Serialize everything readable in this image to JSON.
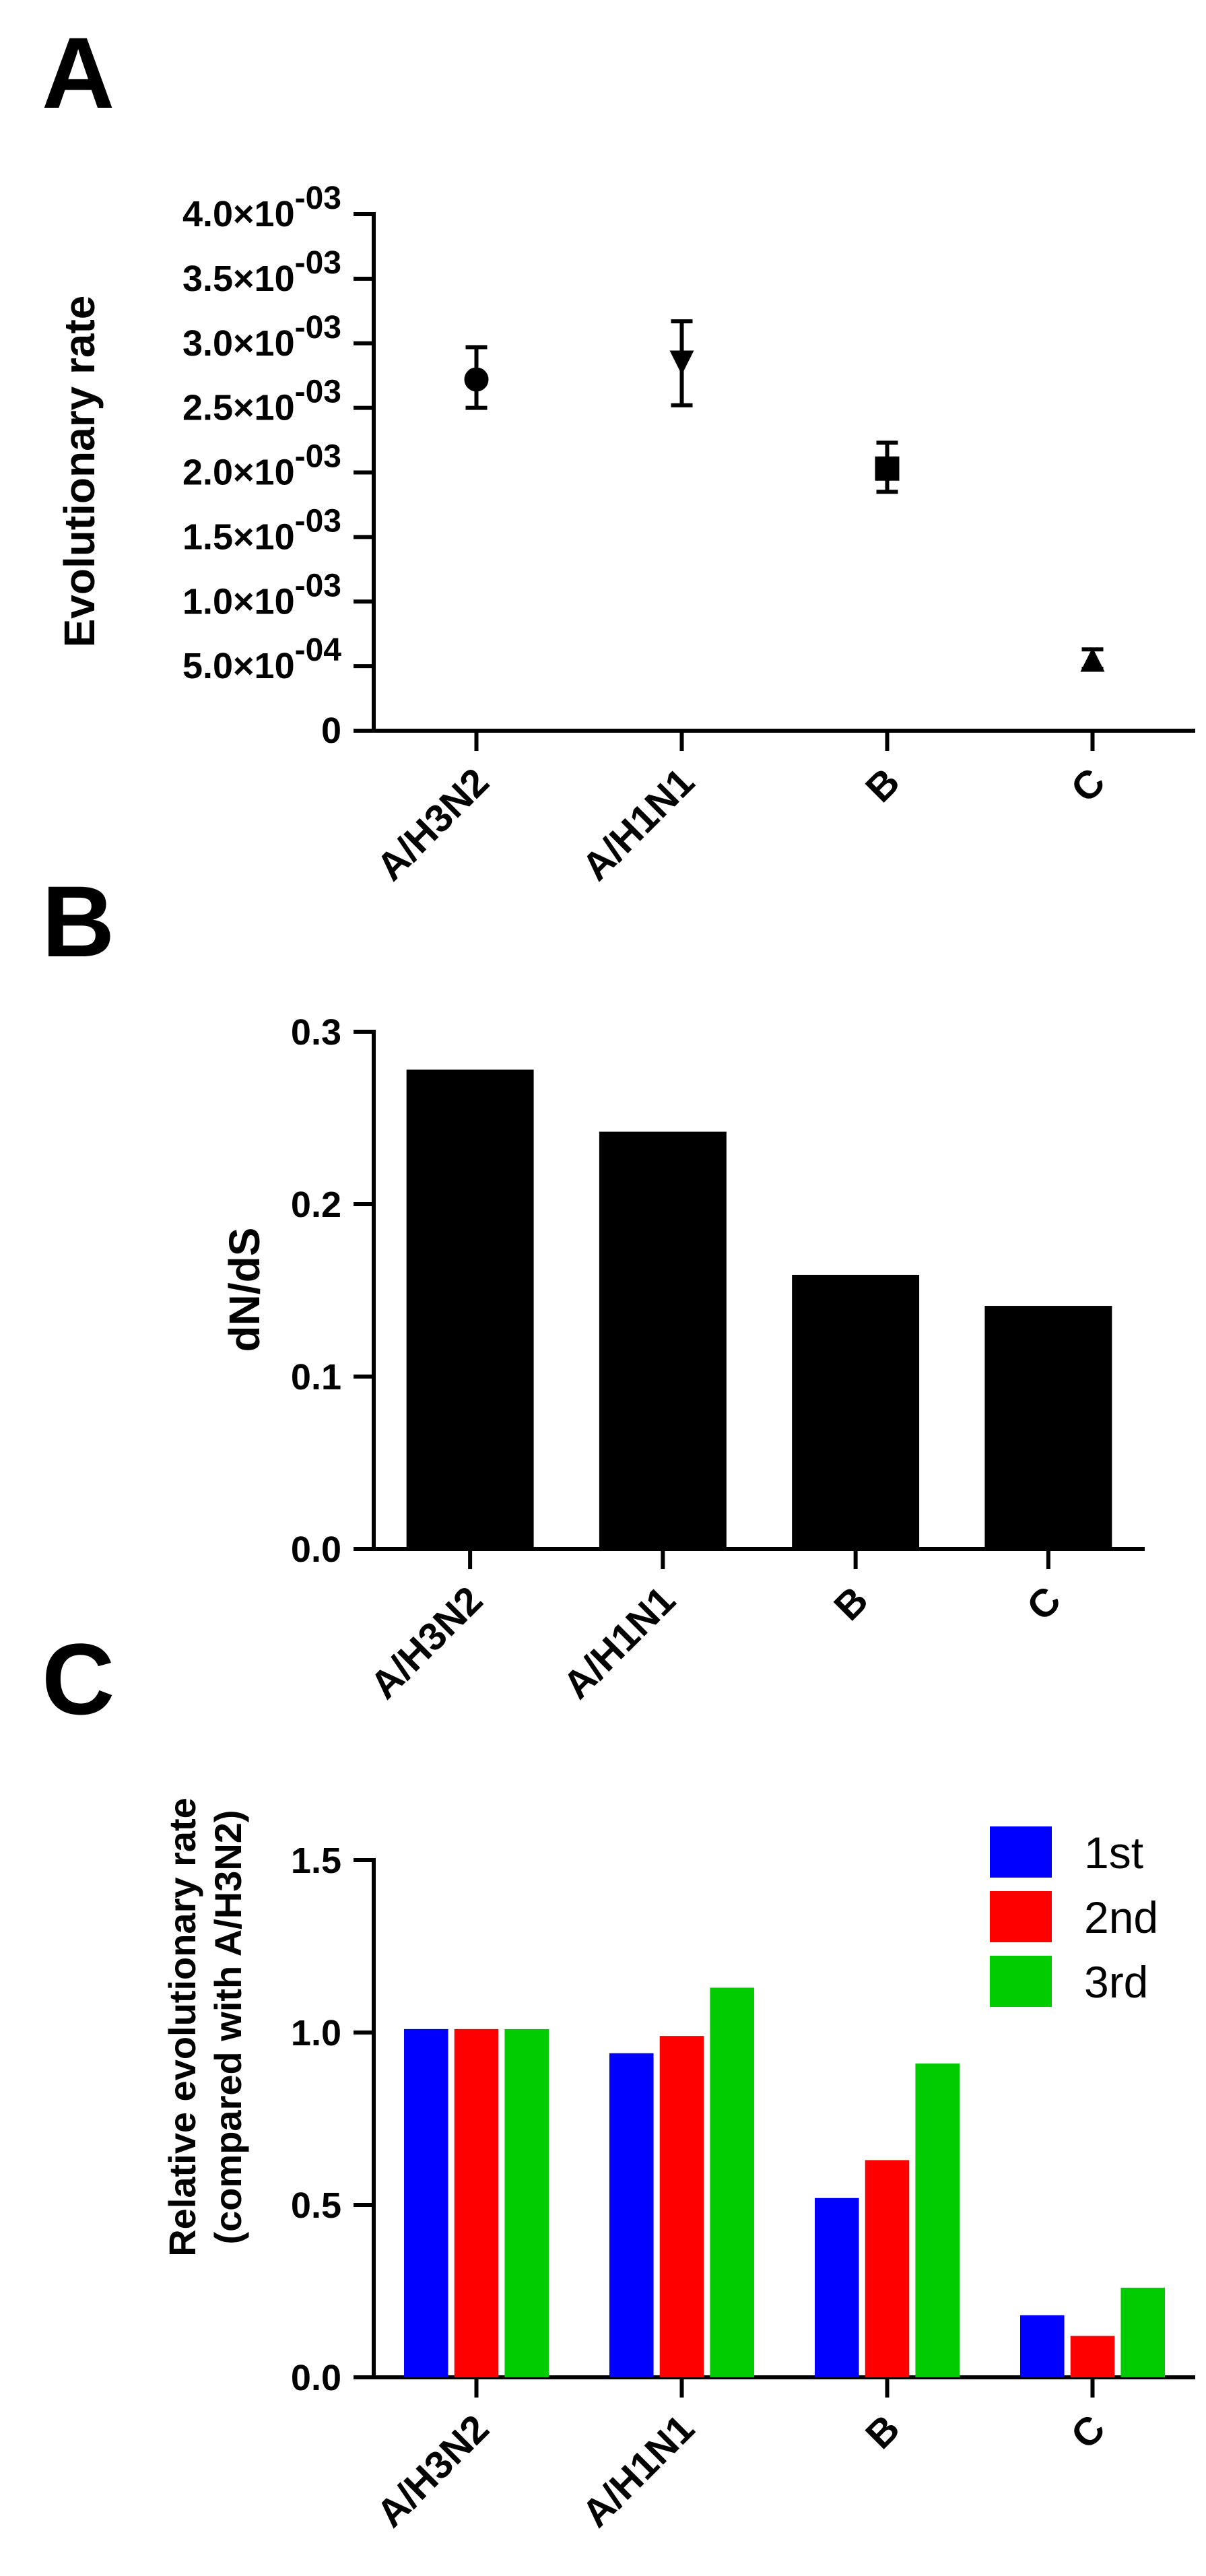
{
  "panels": [
    "A",
    "B",
    "C"
  ],
  "chart_data": [
    {
      "type": "scatter",
      "panel": "A",
      "ylabel": "Evolutionary rate",
      "xlabel": "",
      "categories": [
        "A/H3N2",
        "A/H1N1",
        "B",
        "C"
      ],
      "markers": [
        "circle",
        "triangle-down",
        "square",
        "triangle-up"
      ],
      "values": [
        0.00272,
        0.00285,
        0.00203,
        0.00055
      ],
      "err_low": [
        0.0025,
        0.00252,
        0.00185,
        0.00048
      ],
      "err_high": [
        0.00297,
        0.00317,
        0.00223,
        0.00063
      ],
      "ylim": [
        0,
        0.004
      ],
      "yticks": [
        {
          "value": 0,
          "mant": "0",
          "exp": ""
        },
        {
          "value": 0.0005,
          "mant": "5.0×10",
          "exp": "-04"
        },
        {
          "value": 0.001,
          "mant": "1.0×10",
          "exp": "-03"
        },
        {
          "value": 0.0015,
          "mant": "1.5×10",
          "exp": "-03"
        },
        {
          "value": 0.002,
          "mant": "2.0×10",
          "exp": "-03"
        },
        {
          "value": 0.0025,
          "mant": "2.5×10",
          "exp": "-03"
        },
        {
          "value": 0.003,
          "mant": "3.0×10",
          "exp": "-03"
        },
        {
          "value": 0.0035,
          "mant": "3.5×10",
          "exp": "-03"
        },
        {
          "value": 0.004,
          "mant": "4.0×10",
          "exp": "-03"
        }
      ],
      "color": "#000000"
    },
    {
      "type": "bar",
      "panel": "B",
      "ylabel": "dN/dS",
      "xlabel": "",
      "categories": [
        "A/H3N2",
        "A/H1N1",
        "B",
        "C"
      ],
      "values": [
        0.278,
        0.242,
        0.159,
        0.141
      ],
      "ylim": [
        0,
        0.3
      ],
      "yticks": [
        "0.0",
        "0.1",
        "0.2",
        "0.3"
      ],
      "color": "#000000"
    },
    {
      "type": "bar",
      "panel": "C",
      "ylabel": [
        "Relative evolutionary rate",
        "(compared with A/H3N2)"
      ],
      "xlabel": "",
      "categories": [
        "A/H3N2",
        "A/H1N1",
        "B",
        "C"
      ],
      "series": [
        {
          "name": "1st",
          "color": "#0000ff",
          "values": [
            1.01,
            0.94,
            0.52,
            0.18
          ]
        },
        {
          "name": "2nd",
          "color": "#ff0000",
          "values": [
            1.01,
            0.99,
            0.63,
            0.12
          ]
        },
        {
          "name": "3rd",
          "color": "#00cc00",
          "values": [
            1.01,
            1.13,
            0.91,
            0.26
          ]
        }
      ],
      "ylim": [
        0,
        1.5
      ],
      "yticks": [
        "0.0",
        "0.5",
        "1.0",
        "1.5"
      ],
      "legend": "top-right"
    }
  ]
}
